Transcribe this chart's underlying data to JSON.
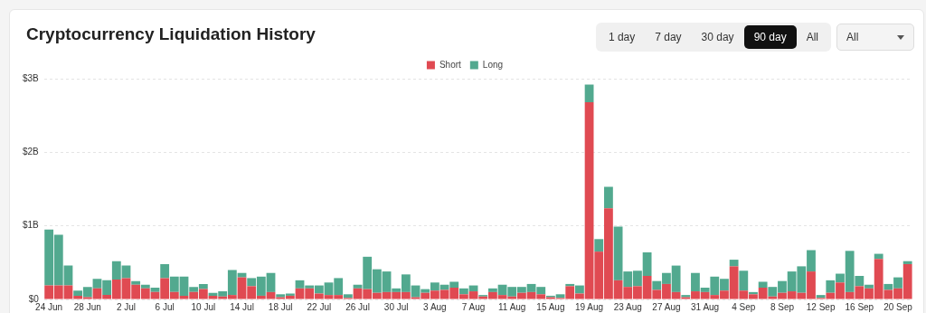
{
  "chart_data": {
    "type": "bar",
    "title": "Cryptocurrency Liquidation History",
    "annotations": [
      "1 day",
      "7 day",
      "30 day",
      "90 day",
      "All",
      "All"
    ],
    "categories": [
      "24 Jun",
      null,
      null,
      null,
      "28 Jun",
      null,
      null,
      null,
      "2 Jul",
      null,
      null,
      null,
      "6 Jul",
      null,
      null,
      null,
      "10 Jul",
      null,
      null,
      null,
      "14 Jul",
      null,
      null,
      null,
      "18 Jul",
      null,
      null,
      null,
      "22 Jul",
      null,
      null,
      null,
      "26 Jul",
      null,
      null,
      null,
      "30 Jul",
      null,
      null,
      null,
      "3 Aug",
      null,
      null,
      null,
      "7 Aug",
      null,
      null,
      null,
      "11 Aug",
      null,
      null,
      null,
      "15 Aug",
      null,
      null,
      null,
      "19 Aug",
      null,
      null,
      null,
      "23 Aug",
      null,
      null,
      null,
      "27 Aug",
      null,
      null,
      null,
      "31 Aug",
      null,
      null,
      null,
      "4 Sep",
      null,
      null,
      null,
      "8 Sep",
      null,
      null,
      null,
      "12 Sep",
      null,
      null,
      null,
      "16 Sep",
      null,
      null,
      null,
      "20 Sep",
      null
    ],
    "series": [
      {
        "name": "Short",
        "color": "#e04a52",
        "values": [
          0.19,
          0.19,
          0.19,
          0.05,
          0.03,
          0.15,
          0.06,
          0.27,
          0.29,
          0.2,
          0.15,
          0.1,
          0.29,
          0.1,
          0.05,
          0.1,
          0.14,
          0.05,
          0.04,
          0.06,
          0.3,
          0.18,
          0.05,
          0.1,
          0.03,
          0.05,
          0.15,
          0.15,
          0.08,
          0.06,
          0.06,
          0.02,
          0.15,
          0.14,
          0.09,
          0.1,
          0.1,
          0.1,
          0.03,
          0.09,
          0.12,
          0.13,
          0.16,
          0.07,
          0.11,
          0.04,
          0.1,
          0.06,
          0.04,
          0.09,
          0.1,
          0.07,
          0.03,
          0.02,
          0.18,
          0.08,
          2.68,
          0.65,
          1.24,
          0.26,
          0.17,
          0.18,
          0.32,
          0.13,
          0.21,
          0.1,
          0.03,
          0.11,
          0.1,
          0.06,
          0.12,
          0.45,
          0.12,
          0.07,
          0.16,
          0.04,
          0.09,
          0.11,
          0.09,
          0.38,
          0.02,
          0.09,
          0.23,
          0.1,
          0.18,
          0.15,
          0.55,
          0.13,
          0.15,
          0.48
        ]
      },
      {
        "name": "Long",
        "color": "#52a98f",
        "values": [
          0.76,
          0.69,
          0.27,
          0.07,
          0.14,
          0.13,
          0.2,
          0.25,
          0.17,
          0.05,
          0.05,
          0.06,
          0.19,
          0.21,
          0.26,
          0.07,
          0.07,
          0.04,
          0.07,
          0.34,
          0.06,
          0.11,
          0.26,
          0.26,
          0.04,
          0.03,
          0.11,
          0.04,
          0.11,
          0.17,
          0.23,
          0.05,
          0.05,
          0.44,
          0.32,
          0.28,
          0.05,
          0.24,
          0.16,
          0.05,
          0.11,
          0.07,
          0.08,
          0.08,
          0.08,
          0.02,
          0.05,
          0.14,
          0.13,
          0.08,
          0.11,
          0.1,
          0.02,
          0.05,
          0.03,
          0.11,
          0.24,
          0.17,
          0.29,
          0.73,
          0.21,
          0.21,
          0.32,
          0.12,
          0.15,
          0.36,
          0.03,
          0.25,
          0.06,
          0.25,
          0.16,
          0.09,
          0.27,
          0.03,
          0.08,
          0.13,
          0.16,
          0.27,
          0.36,
          0.29,
          0.04,
          0.17,
          0.12,
          0.56,
          0.14,
          0.05,
          0.07,
          0.08,
          0.15,
          0.04
        ]
      }
    ],
    "stacked": true,
    "ylim": [
      0,
      3
    ],
    "yticks": [
      {
        "value": 0,
        "label": "$0"
      },
      {
        "value": 1,
        "label": "$1B"
      },
      {
        "value": 2,
        "label": "$2B"
      },
      {
        "value": 3,
        "label": "$3B"
      }
    ],
    "grid": "y",
    "legend": "top"
  }
}
